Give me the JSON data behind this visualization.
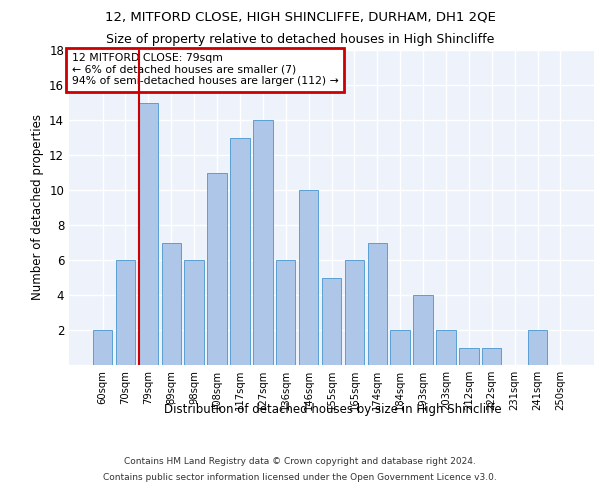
{
  "title1": "12, MITFORD CLOSE, HIGH SHINCLIFFE, DURHAM, DH1 2QE",
  "title2": "Size of property relative to detached houses in High Shincliffe",
  "xlabel": "Distribution of detached houses by size in High Shincliffe",
  "ylabel": "Number of detached properties",
  "bin_labels": [
    "60sqm",
    "70sqm",
    "79sqm",
    "89sqm",
    "98sqm",
    "108sqm",
    "117sqm",
    "127sqm",
    "136sqm",
    "146sqm",
    "155sqm",
    "165sqm",
    "174sqm",
    "184sqm",
    "193sqm",
    "203sqm",
    "212sqm",
    "222sqm",
    "231sqm",
    "241sqm",
    "250sqm"
  ],
  "bar_values": [
    2,
    6,
    15,
    7,
    6,
    11,
    13,
    14,
    6,
    10,
    5,
    6,
    7,
    2,
    4,
    2,
    1,
    1,
    0,
    2,
    0
  ],
  "bar_color": "#aec6e8",
  "bar_edge_color": "#5a9fd4",
  "property_line_x": 2,
  "annotation_title": "12 MITFORD CLOSE: 79sqm",
  "annotation_line1": "← 6% of detached houses are smaller (7)",
  "annotation_line2": "94% of semi-detached houses are larger (112) →",
  "annotation_box_color": "#ffffff",
  "annotation_box_edge": "#cc0000",
  "property_line_color": "#cc0000",
  "ylim": [
    0,
    18
  ],
  "yticks": [
    0,
    2,
    4,
    6,
    8,
    10,
    12,
    14,
    16,
    18
  ],
  "footer1": "Contains HM Land Registry data © Crown copyright and database right 2024.",
  "footer2": "Contains public sector information licensed under the Open Government Licence v3.0.",
  "bg_color": "#edf2fb",
  "grid_color": "#ffffff",
  "title1_fontsize": 9.5,
  "title2_fontsize": 9
}
